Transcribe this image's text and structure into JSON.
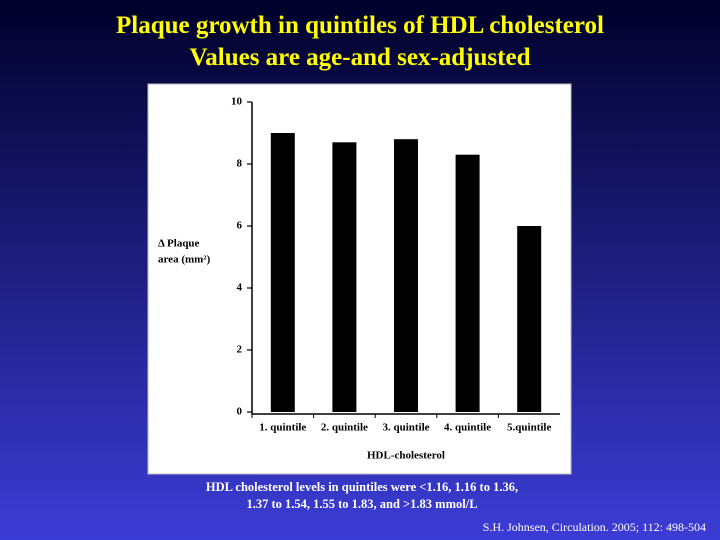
{
  "slide": {
    "title": [
      "Plaque growth in quintiles of HDL cholesterol",
      "Values are age-and sex-adjusted"
    ],
    "caption": [
      "HDL cholesterol levels in quintiles were  <1.16, 1.16 to 1.36,",
      "1.37 to 1.54, 1.55 to 1.83, and >1.83 mmol/L"
    ],
    "citation": "S.H. Johnsen, Circulation. 2005; 112: 498-504"
  },
  "chart_data": {
    "type": "bar",
    "categories": [
      "1. quintile",
      "2. quintile",
      "3. quintile",
      "4. quintile",
      "5.quintile"
    ],
    "values": [
      9.0,
      8.7,
      8.8,
      8.3,
      6.0
    ],
    "color": "#000000",
    "ylim": [
      0,
      10
    ],
    "yticks": [
      0,
      2,
      4,
      6,
      8,
      10
    ],
    "ylabel": [
      "Δ Plaque",
      "area (mm²)"
    ],
    "xlabel": "HDL-cholesterol",
    "grid": false
  }
}
